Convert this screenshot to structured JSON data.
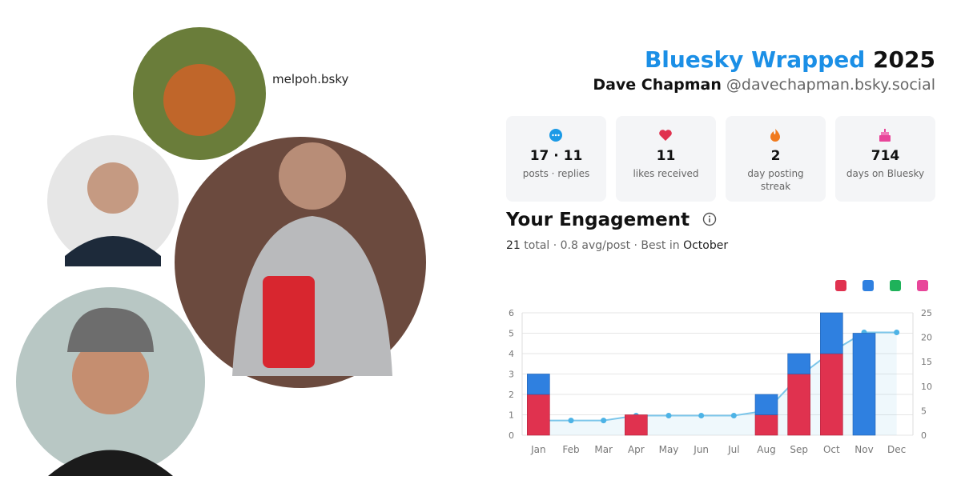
{
  "header": {
    "title_brand": "Bluesky Wrapped",
    "title_year": "2025",
    "name": "Dave Chapman",
    "handle": "@davechapman.bsky.social"
  },
  "photo_caption": "melpoh.bsky",
  "stats": [
    {
      "value": "17 · 11",
      "label": "posts · replies"
    },
    {
      "value": "11",
      "label": "likes received"
    },
    {
      "value": "2",
      "label": "day posting streak"
    },
    {
      "value": "714",
      "label": "days on Bluesky"
    }
  ],
  "engagement": {
    "title": "Your Engagement",
    "total": "21",
    "summary": "total · 0.8 avg/post · Best in",
    "best_month": "October"
  },
  "chart_data": {
    "type": "bar",
    "categories": [
      "Jan",
      "Feb",
      "Mar",
      "Apr",
      "May",
      "Jun",
      "Jul",
      "Aug",
      "Sep",
      "Oct",
      "Nov",
      "Dec"
    ],
    "series": [
      {
        "color": "#e0324f",
        "values": [
          2,
          0,
          0,
          1,
          0,
          0,
          0,
          1,
          3,
          4,
          0,
          0
        ]
      },
      {
        "color": "#2f80e0",
        "values": [
          1,
          0,
          0,
          0,
          0,
          0,
          0,
          1,
          1,
          2,
          5,
          0
        ]
      },
      {
        "color": "#7cc6ea",
        "type": "line",
        "axis": "y2",
        "values": [
          3,
          3,
          3,
          4,
          4,
          4,
          4,
          5,
          12,
          17,
          21,
          21
        ]
      }
    ],
    "ylim": [
      0,
      6
    ],
    "yticks": [
      0,
      1,
      2,
      3,
      4,
      5,
      6
    ],
    "y2lim": [
      0,
      25
    ],
    "y2ticks": [
      0,
      5,
      10,
      15,
      20,
      25
    ],
    "grid": true,
    "legend_colors": [
      "#e0324f",
      "#2f80e0",
      "#1fb25a",
      "#e8469a"
    ]
  }
}
